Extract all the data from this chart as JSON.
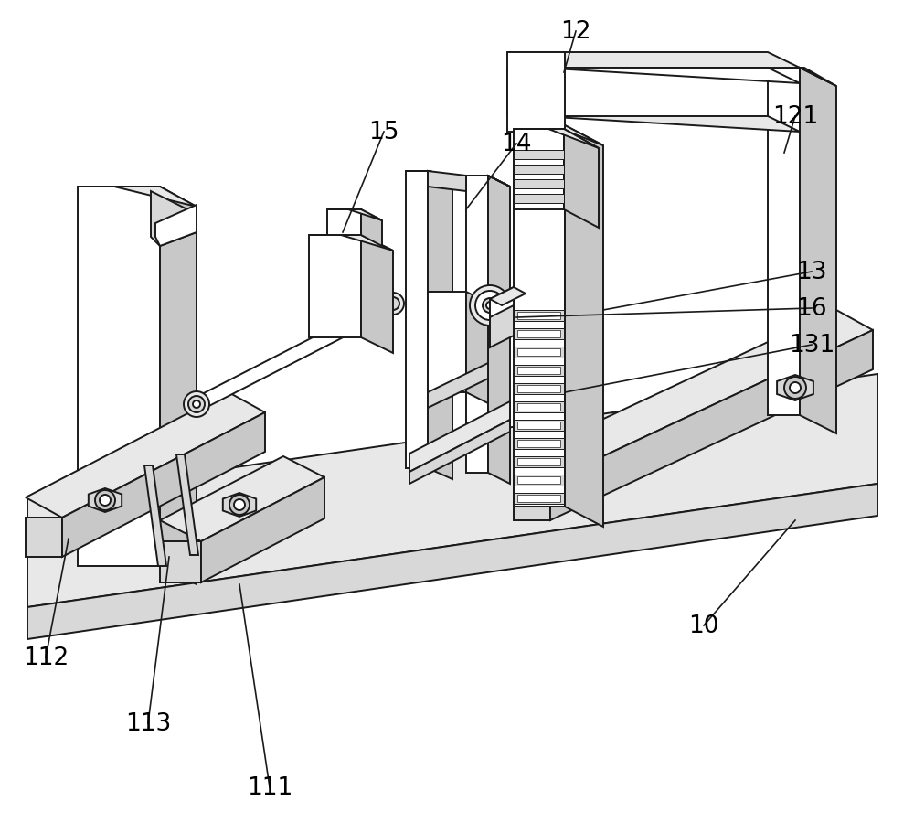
{
  "background_color": "#ffffff",
  "line_color": "#1a1a1a",
  "lw": 1.4,
  "lw_thin": 0.9,
  "face_white": "#ffffff",
  "face_light": "#e8e8e8",
  "face_mid": "#d8d8d8",
  "face_dark": "#c8c8c8",
  "face_darkest": "#b8b8b8",
  "figsize": [
    10.0,
    9.12
  ],
  "dpi": 100
}
